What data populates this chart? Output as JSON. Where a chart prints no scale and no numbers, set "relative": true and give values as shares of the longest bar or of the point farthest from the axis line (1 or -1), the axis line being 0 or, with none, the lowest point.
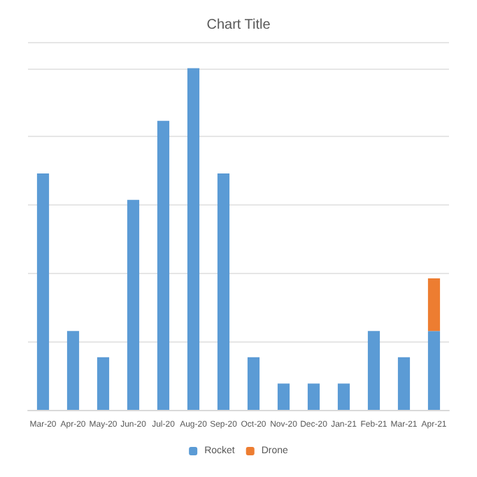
{
  "chart_data": {
    "type": "bar",
    "title": "Chart Title",
    "relative": true,
    "stacked": true,
    "grid": "y",
    "legend": "bottom",
    "categories": [
      "Mar-20",
      "Apr-20",
      "May-20",
      "Jun-20",
      "Jul-20",
      "Aug-20",
      "Sep-20",
      "Oct-20",
      "Nov-20",
      "Dec-20",
      "Jan-21",
      "Feb-21",
      "Mar-21",
      "Apr-21"
    ],
    "series": [
      {
        "name": "Rocket",
        "color": "#5b9bd5",
        "values": [
          0.692,
          0.231,
          0.154,
          0.615,
          0.846,
          1,
          0.692,
          0.154,
          0.077,
          0.077,
          0.077,
          0.231,
          0.154,
          0.231
        ]
      },
      {
        "name": "Drone",
        "color": "#ed7d31",
        "values": [
          null,
          null,
          null,
          null,
          null,
          null,
          null,
          null,
          null,
          null,
          null,
          null,
          null,
          0.154
        ]
      }
    ]
  }
}
